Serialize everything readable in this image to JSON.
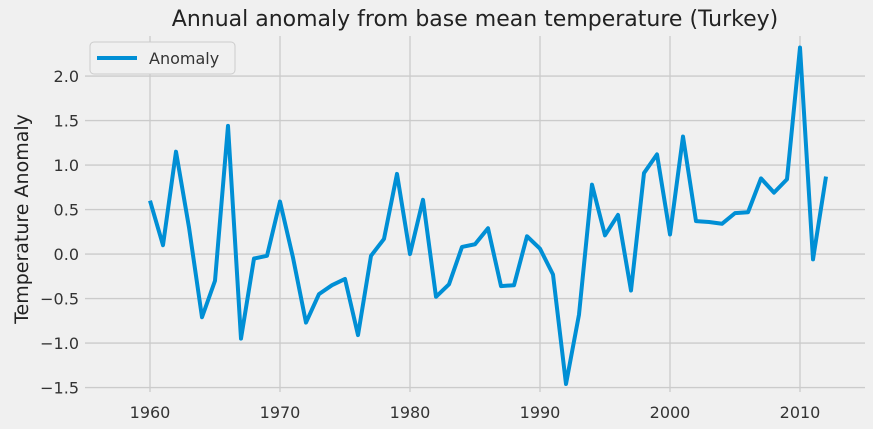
{
  "chart_data": {
    "type": "line",
    "title": "Annual anomaly from base mean temperature (Turkey)",
    "xlabel": "",
    "ylabel": "Temperature Anomaly",
    "xlim": [
      1955,
      2015
    ],
    "ylim": [
      -1.55,
      2.45
    ],
    "xticks": [
      1960,
      1970,
      1980,
      1990,
      2000,
      2010
    ],
    "yticks": [
      -1.5,
      -1.0,
      -0.5,
      0.0,
      0.5,
      1.0,
      1.5,
      2.0
    ],
    "grid": true,
    "legend_position": "top-left",
    "series": [
      {
        "name": "Anomaly",
        "color": "#008fd5",
        "x": [
          1960,
          1961,
          1962,
          1963,
          1964,
          1965,
          1966,
          1967,
          1968,
          1969,
          1970,
          1971,
          1972,
          1973,
          1974,
          1975,
          1976,
          1977,
          1978,
          1979,
          1980,
          1981,
          1982,
          1983,
          1984,
          1985,
          1986,
          1987,
          1988,
          1989,
          1990,
          1991,
          1992,
          1993,
          1994,
          1995,
          1996,
          1997,
          1998,
          1999,
          2000,
          2001,
          2002,
          2003,
          2004,
          2005,
          2006,
          2007,
          2008,
          2009,
          2010,
          2011,
          2012
        ],
        "values": [
          0.6,
          0.1,
          1.15,
          0.3,
          -0.71,
          -0.3,
          1.44,
          -0.95,
          -0.05,
          -0.02,
          0.59,
          -0.04,
          -0.77,
          -0.45,
          -0.35,
          -0.28,
          -0.91,
          -0.02,
          0.17,
          0.9,
          0.0,
          0.61,
          -0.48,
          -0.34,
          0.08,
          0.11,
          0.29,
          -0.36,
          -0.35,
          0.2,
          0.06,
          -0.23,
          -1.46,
          -0.68,
          0.78,
          0.21,
          0.44,
          -0.41,
          0.91,
          1.12,
          0.22,
          1.32,
          0.37,
          0.36,
          0.34,
          0.46,
          0.47,
          0.85,
          0.69,
          0.84,
          2.32,
          -0.06,
          0.87
        ]
      }
    ]
  }
}
